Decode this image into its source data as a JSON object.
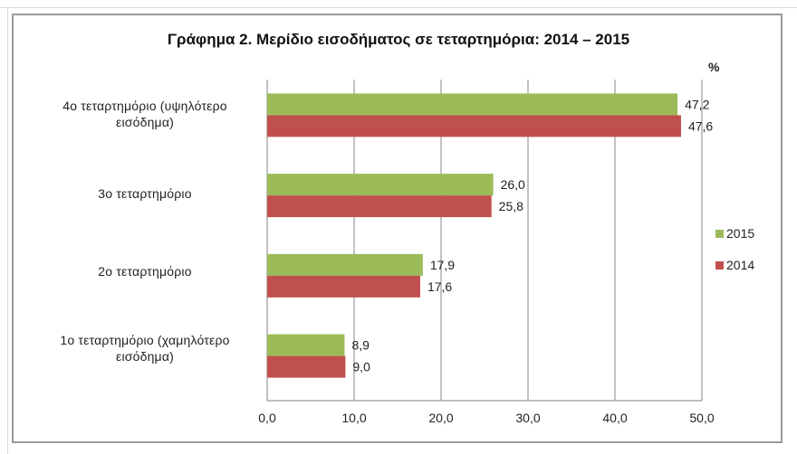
{
  "chart_data": {
    "type": "bar",
    "orientation": "horizontal",
    "title": "Γράφημα 2. Μερίδιο εισοδήματος σε τεταρτημόρια: 2014 – 2015",
    "unit_label": "%",
    "categories": [
      "4ο  τεταρτημόριο  (υψηλότερο εισόδημα)",
      "3ο  τεταρτημόριο",
      "2ο  τεταρτημόριο",
      "1ο  τεταρτημόριο (χαμηλότερο εισόδημα)"
    ],
    "series": [
      {
        "name": "2015",
        "color": "#9BBB59",
        "values": [
          47.2,
          26.0,
          17.9,
          8.9
        ],
        "labels": [
          "47,2",
          "26,0",
          "17,9",
          "8,9"
        ]
      },
      {
        "name": "2014",
        "color": "#C0504D",
        "values": [
          47.6,
          25.8,
          17.6,
          9.0
        ],
        "labels": [
          "47,6",
          "25,8",
          "17,6",
          "9,0"
        ]
      }
    ],
    "xlim": [
      0,
      50
    ],
    "xticks": [
      "0,0",
      "10,0",
      "20,0",
      "30,0",
      "40,0",
      "50,0"
    ],
    "grid": true,
    "legend": "right"
  }
}
